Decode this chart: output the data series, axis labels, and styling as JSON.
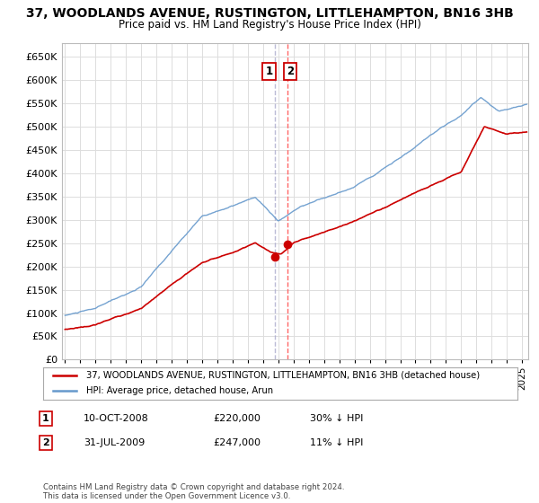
{
  "title": "37, WOODLANDS AVENUE, RUSTINGTON, LITTLEHAMPTON, BN16 3HB",
  "subtitle": "Price paid vs. HM Land Registry's House Price Index (HPI)",
  "ylim": [
    0,
    680000
  ],
  "yticks": [
    0,
    50000,
    100000,
    150000,
    200000,
    250000,
    300000,
    350000,
    400000,
    450000,
    500000,
    550000,
    600000,
    650000
  ],
  "xlim_start": 1994.8,
  "xlim_end": 2025.4,
  "hpi_color": "#6699CC",
  "price_color": "#CC0000",
  "dashed_line_color_1": "#AAAACC",
  "dashed_line_color_2": "#FF6666",
  "background_color": "#FFFFFF",
  "grid_color": "#DDDDDD",
  "transaction1_x": 2008.78,
  "transaction1_y": 220000,
  "transaction2_x": 2009.58,
  "transaction2_y": 247000,
  "legend_label1": "37, WOODLANDS AVENUE, RUSTINGTON, LITTLEHAMPTON, BN16 3HB (detached house)",
  "legend_label2": "HPI: Average price, detached house, Arun",
  "transaction1_date": "10-OCT-2008",
  "transaction1_price": "£220,000",
  "transaction1_note": "30% ↓ HPI",
  "transaction2_date": "31-JUL-2009",
  "transaction2_price": "£247,000",
  "transaction2_note": "11% ↓ HPI",
  "footer": "Contains HM Land Registry data © Crown copyright and database right 2024.\nThis data is licensed under the Open Government Licence v3.0."
}
